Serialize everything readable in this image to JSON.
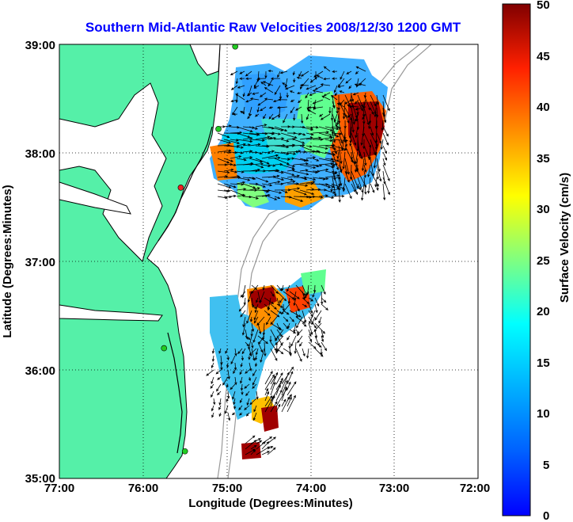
{
  "title": "Southern Mid-Atlantic Raw Velocities 2008/12/30 1200 GMT",
  "map": {
    "xlabel": "Longitude (Degrees:Minutes)",
    "ylabel": "Latitude (Degrees:Minutes)",
    "lon_range": [
      -77,
      -72
    ],
    "lat_range": [
      35,
      39
    ],
    "x_ticks": [
      "77:00",
      "76:00",
      "75:00",
      "74:00",
      "73:00",
      "72:00"
    ],
    "y_ticks": [
      "39:00",
      "38:00",
      "37:00",
      "36:00",
      "35:00"
    ],
    "grid": "dotted",
    "land_color": "#55f0a8",
    "coast_color": "#000000",
    "isobath_color": "#999999",
    "station_color": "#22cc22",
    "station_highlight_color": "#ee2222",
    "stations": [
      {
        "lon": -74.9,
        "lat": 38.98,
        "color": "#22cc22"
      },
      {
        "lon": -75.1,
        "lat": 38.22,
        "color": "#22cc22"
      },
      {
        "lon": -75.55,
        "lat": 37.68,
        "color": "#ee2222"
      },
      {
        "lon": -75.75,
        "lat": 36.2,
        "color": "#22cc22"
      },
      {
        "lon": -75.5,
        "lat": 35.25,
        "color": "#22cc22"
      }
    ]
  },
  "colorbar": {
    "label": "Surface Velocity (cm/s)",
    "min": 0,
    "max": 50,
    "ticks": [
      "50",
      "45",
      "40",
      "35",
      "30",
      "25",
      "20",
      "15",
      "10",
      "5",
      "0"
    ],
    "colormap": "jet"
  }
}
